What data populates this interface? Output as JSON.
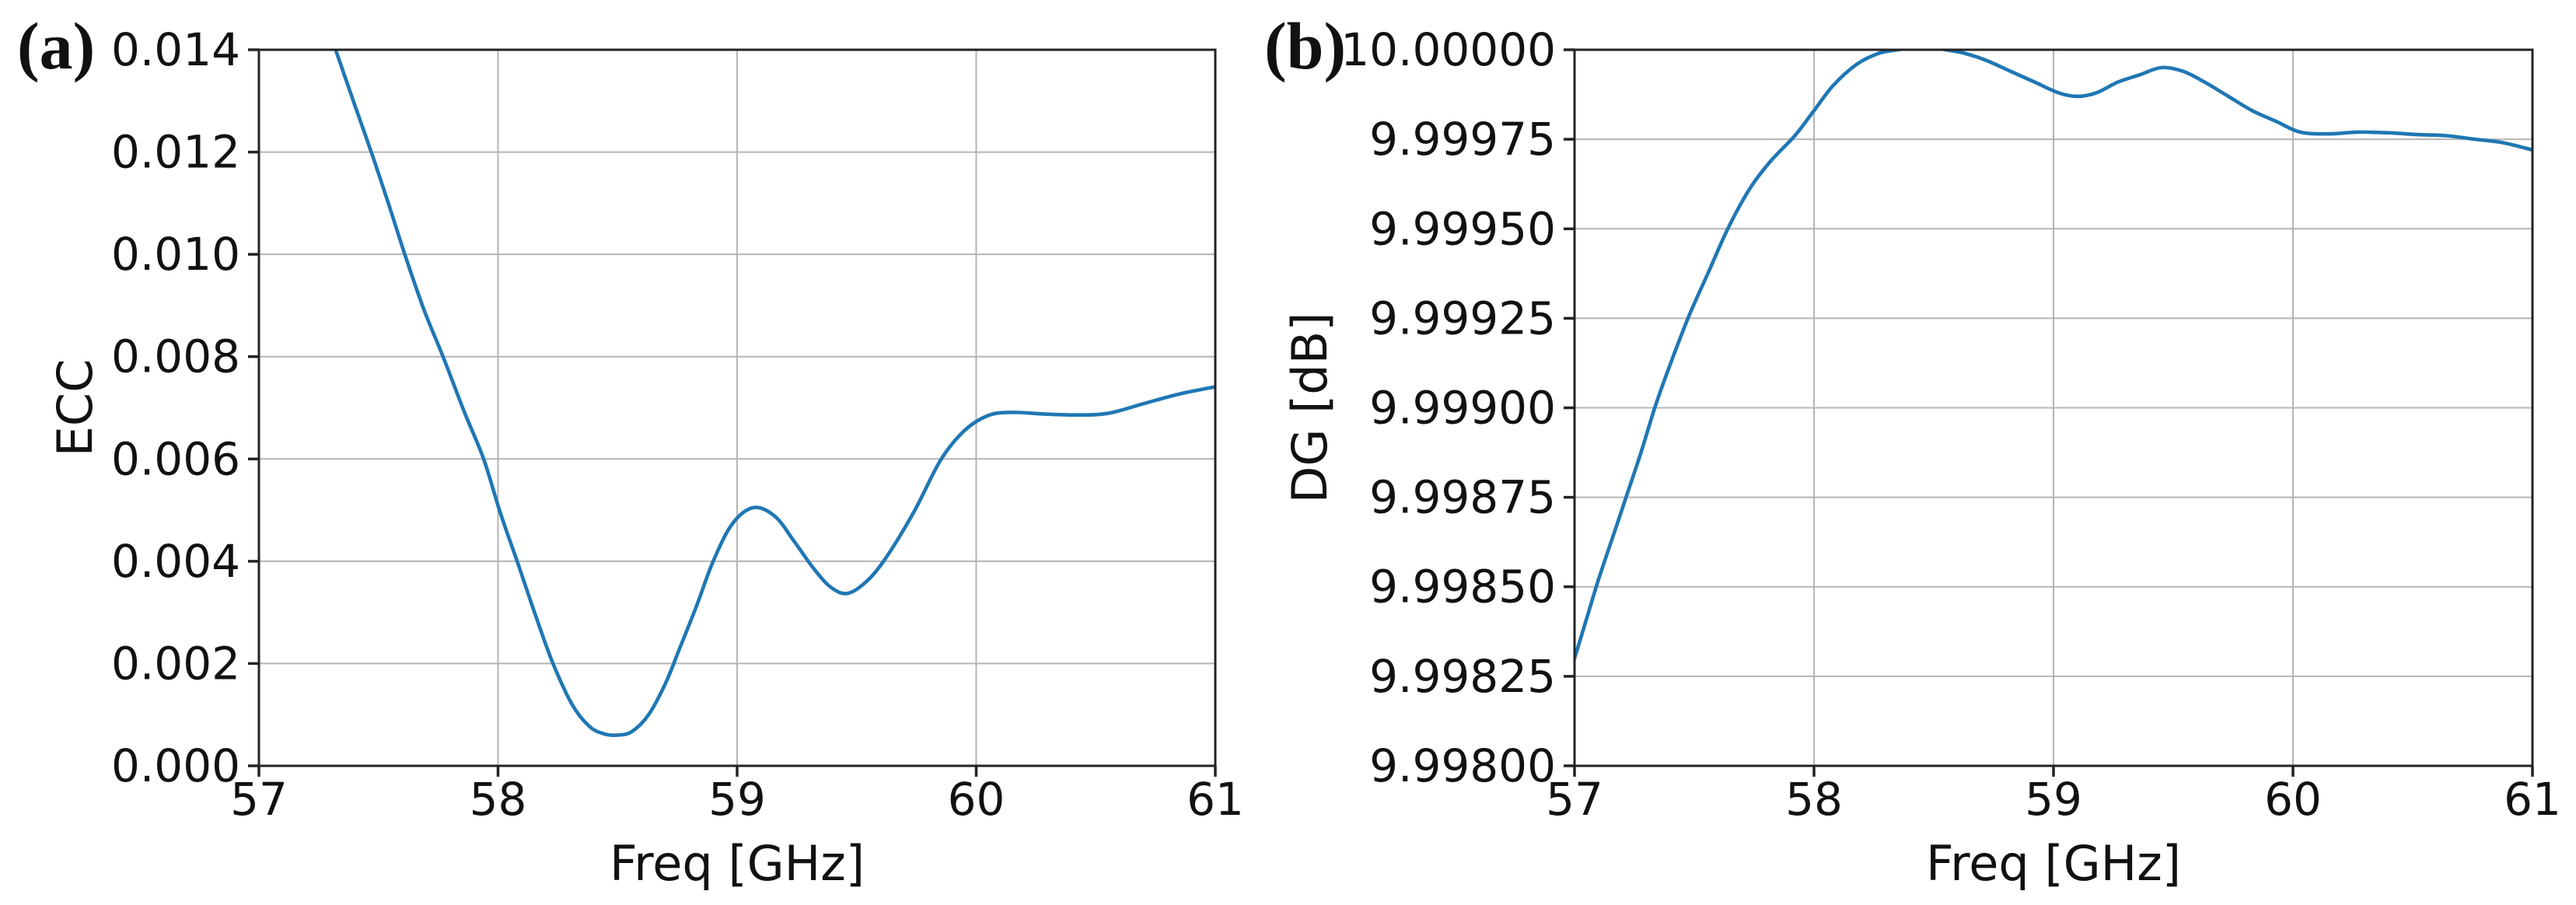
{
  "figure": {
    "background": "#ffffff",
    "curve_color": "#1f77b4",
    "grid_color": "#b4b4b4",
    "axis_color": "#232323",
    "text_color": "#111111"
  },
  "chart_data": [
    {
      "type": "line",
      "panel_tag": "(a)",
      "title": "",
      "xlabel": "Freq [GHz]",
      "ylabel": "ECC",
      "xlim": [
        57,
        61
      ],
      "ylim": [
        0.0,
        0.014
      ],
      "grid": true,
      "legend": "none",
      "xticks": [
        "57",
        "58",
        "59",
        "60",
        "61"
      ],
      "yticks": [
        "0.000",
        "0.002",
        "0.004",
        "0.006",
        "0.008",
        "0.010",
        "0.012",
        "0.014"
      ],
      "series": [
        {
          "name": "ECC",
          "x": [
            57.28,
            57.4,
            57.47,
            57.54,
            57.61,
            57.69,
            57.77,
            57.86,
            57.94,
            58.01,
            58.08,
            58.16,
            58.23,
            58.31,
            58.38,
            58.44,
            58.5,
            58.56,
            58.63,
            58.7,
            58.76,
            58.83,
            58.9,
            58.98,
            59.07,
            59.16,
            59.24,
            59.32,
            59.39,
            59.46,
            59.54,
            59.62,
            59.74,
            59.85,
            59.95,
            60.05,
            60.15,
            60.28,
            60.42,
            60.55,
            60.7,
            60.85,
            61.0
          ],
          "y": [
            0.01455,
            0.01293,
            0.012,
            0.01102,
            0.01,
            0.00892,
            0.008,
            0.00691,
            0.006,
            0.00494,
            0.004,
            0.0029,
            0.002,
            0.0012,
            0.00078,
            0.00063,
            0.0006,
            0.00067,
            0.001,
            0.00161,
            0.0023,
            0.00312,
            0.004,
            0.00473,
            0.00505,
            0.00487,
            0.00438,
            0.00386,
            0.0035,
            0.00337,
            0.0036,
            0.00405,
            0.00497,
            0.00597,
            0.00655,
            0.00685,
            0.00691,
            0.00688,
            0.00686,
            0.00689,
            0.00708,
            0.00727,
            0.00741
          ]
        }
      ]
    },
    {
      "type": "line",
      "panel_tag": "(b)",
      "title": "",
      "xlabel": "Freq [GHz]",
      "ylabel": "DG [dB]",
      "xlim": [
        57,
        61
      ],
      "ylim": [
        9.998,
        10.0
      ],
      "grid": true,
      "legend": "none",
      "xticks": [
        "57",
        "58",
        "59",
        "60",
        "61"
      ],
      "yticks": [
        "9.99800",
        "9.99825",
        "9.99850",
        "9.99875",
        "9.99900",
        "9.99925",
        "9.99950",
        "9.99975",
        "10.00000"
      ],
      "series": [
        {
          "name": "DG",
          "x": [
            57.0,
            57.05,
            57.1,
            57.16,
            57.22,
            57.28,
            57.34,
            57.41,
            57.48,
            57.56,
            57.64,
            57.73,
            57.82,
            57.92,
            58.0,
            58.08,
            58.18,
            58.27,
            58.35,
            58.45,
            58.55,
            58.63,
            58.72,
            58.82,
            58.92,
            59.02,
            59.1,
            59.18,
            59.27,
            59.36,
            59.45,
            59.54,
            59.63,
            59.73,
            59.83,
            59.93,
            60.03,
            60.15,
            60.27,
            60.4,
            60.52,
            60.64,
            60.76,
            60.88,
            61.0
          ],
          "y": [
            9.9983,
            9.99841,
            9.99852,
            9.99864,
            9.99876,
            9.99888,
            9.99901,
            9.99914,
            9.99926,
            9.99938,
            9.9995,
            9.99961,
            9.99969,
            9.99976,
            9.99983,
            9.9999,
            9.99996,
            9.99999,
            10.0,
            10.00001,
            10.0,
            9.99999,
            9.99997,
            9.99994,
            9.99991,
            9.99988,
            9.99987,
            9.99988,
            9.99991,
            9.99993,
            9.99995,
            9.99994,
            9.99991,
            9.99987,
            9.99983,
            9.9998,
            9.99977,
            9.999765,
            9.99977,
            9.999768,
            9.999763,
            9.99976,
            9.99975,
            9.99974,
            9.99972
          ]
        }
      ]
    }
  ]
}
